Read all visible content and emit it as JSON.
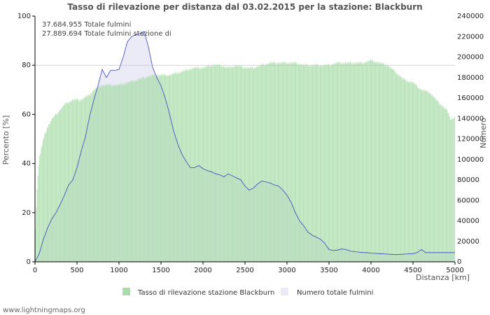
{
  "chart_data": {
    "type": "area",
    "title": "Tasso di rilevazione per distanza dal 03.02.2015 per la stazione: Blackburn",
    "xlabel": "Distanza   [km]",
    "ylabel_left": "Percento   [%]",
    "ylabel_right": "Numero",
    "xlim": [
      0,
      5000
    ],
    "ylim_left": [
      0,
      100
    ],
    "ylim_right": [
      0,
      240000
    ],
    "x_ticks": [
      0,
      500,
      1000,
      1500,
      2000,
      2500,
      3000,
      3500,
      4000,
      4500,
      5000
    ],
    "y_ticks_left": [
      0,
      20,
      40,
      60,
      80,
      100
    ],
    "y_ticks_right": [
      0,
      20000,
      40000,
      60000,
      80000,
      100000,
      120000,
      140000,
      160000,
      180000,
      200000,
      220000,
      240000
    ],
    "gridline_left": 80,
    "annotations": [
      "37.684.955 Totale fulmini",
      "27.889.694 Totale fulmini stazione di"
    ],
    "series": [
      {
        "name": "Tasso di rilevazione stazione Blackburn",
        "axis": "left",
        "color": "#a8dca8",
        "x": [
          0,
          25,
          50,
          100,
          150,
          200,
          250,
          300,
          350,
          400,
          450,
          500,
          550,
          600,
          650,
          700,
          750,
          800,
          900,
          1000,
          1100,
          1200,
          1300,
          1400,
          1500,
          1600,
          1700,
          1800,
          1900,
          2000,
          2100,
          2200,
          2300,
          2400,
          2500,
          2600,
          2700,
          2800,
          2900,
          3000,
          3100,
          3200,
          3300,
          3400,
          3500,
          3600,
          3700,
          3800,
          3900,
          4000,
          4100,
          4200,
          4300,
          4400,
          4500,
          4600,
          4700,
          4800,
          4900,
          4950,
          5000
        ],
        "values": [
          10,
          30,
          42,
          50,
          55,
          58,
          60,
          62,
          64,
          65,
          66,
          66,
          66,
          67,
          68,
          70,
          71,
          72,
          72,
          72,
          73,
          74,
          75,
          76,
          76,
          76,
          77,
          78,
          79,
          79,
          80,
          80,
          79,
          80,
          79,
          79,
          80,
          81,
          81,
          81,
          81,
          80,
          80,
          80,
          80,
          81,
          81,
          81,
          81,
          82,
          81,
          80,
          77,
          74,
          73,
          70,
          69,
          65,
          62,
          58,
          59
        ]
      },
      {
        "name": "Numero totale fulmini",
        "axis": "right",
        "color": "#ebebf8",
        "line_color": "#3344bb",
        "x": [
          0,
          50,
          100,
          150,
          200,
          250,
          300,
          350,
          400,
          450,
          500,
          550,
          600,
          650,
          700,
          750,
          800,
          850,
          900,
          950,
          1000,
          1050,
          1100,
          1150,
          1200,
          1250,
          1300,
          1350,
          1400,
          1450,
          1500,
          1550,
          1600,
          1650,
          1700,
          1750,
          1800,
          1850,
          1900,
          1950,
          2000,
          2050,
          2100,
          2150,
          2200,
          2250,
          2300,
          2350,
          2400,
          2450,
          2500,
          2550,
          2600,
          2650,
          2700,
          2750,
          2800,
          2850,
          2900,
          2950,
          3000,
          3050,
          3100,
          3150,
          3200,
          3250,
          3300,
          3350,
          3400,
          3450,
          3500,
          3550,
          3600,
          3650,
          3700,
          3750,
          3800,
          3850,
          3900,
          3950,
          4000,
          4100,
          4200,
          4300,
          4400,
          4500,
          4550,
          4600,
          4650,
          4700,
          4800,
          4900,
          5000
        ],
        "values": [
          0,
          8000,
          22000,
          33000,
          42000,
          48000,
          56000,
          65000,
          75000,
          80000,
          92000,
          108000,
          122000,
          142000,
          158000,
          172000,
          188000,
          180000,
          187000,
          187000,
          188000,
          200000,
          215000,
          220000,
          222000,
          223000,
          225000,
          210000,
          190000,
          180000,
          172000,
          160000,
          145000,
          128000,
          115000,
          105000,
          98000,
          92000,
          92000,
          94000,
          91000,
          89000,
          88000,
          86000,
          85000,
          83000,
          86000,
          84000,
          82000,
          80000,
          74000,
          70000,
          72000,
          76000,
          79000,
          78000,
          77000,
          75000,
          74000,
          70000,
          65000,
          58000,
          48000,
          40000,
          35000,
          29000,
          26000,
          24000,
          22000,
          18000,
          12000,
          11000,
          11500,
          12500,
          12000,
          10500,
          10000,
          9500,
          9000,
          9000,
          8500,
          8000,
          7500,
          7000,
          7500,
          8000,
          9000,
          12000,
          9000,
          9000,
          9000,
          9000,
          9000
        ]
      }
    ]
  },
  "footer": "www.lightningmaps.org"
}
